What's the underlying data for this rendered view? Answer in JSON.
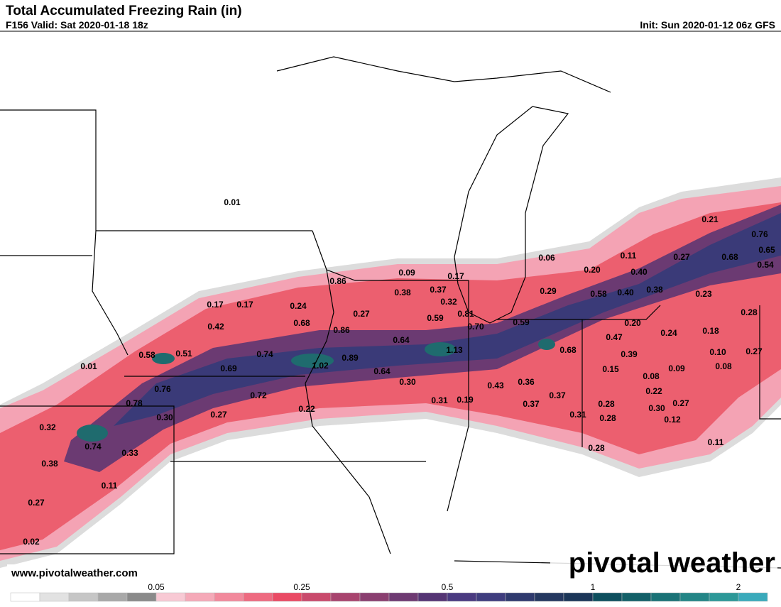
{
  "header": {
    "title": "Total Accumulated Freezing Rain (in)",
    "valid": "F156 Valid: Sat 2020-01-18 18z",
    "init": "Init: Sun 2020-01-12 06z GFS"
  },
  "map_labels": [
    "0.01",
    "0.06",
    "0.21",
    "0.76",
    "0.65",
    "0.54",
    "0.68",
    "0.11",
    "0.27",
    "0.20",
    "0.40",
    "0.09",
    "0.17",
    "0.86",
    "0.38",
    "0.37",
    "0.29",
    "0.58",
    "0.40",
    "0.38",
    "0.23",
    "0.32",
    "0.17",
    "0.17",
    "0.24",
    "0.27",
    "0.81",
    "0.28",
    "0.59",
    "0.42",
    "0.68",
    "0.70",
    "0.59",
    "0.20",
    "0.24",
    "0.18",
    "0.86",
    "0.47",
    "0.64",
    "0.58",
    "0.51",
    "0.74",
    "1.13",
    "0.68",
    "0.39",
    "0.10",
    "0.27",
    "0.89",
    "0.01",
    "0.69",
    "1.02",
    "0.64",
    "0.15",
    "0.08",
    "0.09",
    "0.08",
    "0.30",
    "0.36",
    "0.43",
    "0.76",
    "0.72",
    "0.22",
    "0.37",
    "0.31",
    "0.19",
    "0.78",
    "0.28",
    "0.30",
    "0.27",
    "0.37",
    "0.22",
    "0.27",
    "0.30",
    "0.31",
    "0.28",
    "0.12",
    "0.32",
    "0.74",
    "0.33",
    "0.28",
    "0.11",
    "0.38",
    "0.11",
    "0.27",
    "0.02"
  ],
  "footer": {
    "website": "www.pivotalweather.com",
    "brand": "pivotal weather"
  },
  "colorbar": {
    "labels": [
      "0.05",
      "0.25",
      "0.5",
      "1",
      "2"
    ],
    "colors": [
      "#ffffff",
      "#e2e2e2",
      "#c6c6c6",
      "#a8a8a8",
      "#8a8a8a",
      "#f8c9d4",
      "#f5a9b8",
      "#f2899c",
      "#ee6a80",
      "#ea4a64",
      "#c94a6c",
      "#a8446e",
      "#8a3f70",
      "#6e3a72",
      "#553574",
      "#4a3a80",
      "#3f3d7e",
      "#2f3a6e",
      "#253860",
      "#1b3658",
      "#0e4f5e",
      "#136068",
      "#1a7276",
      "#238586",
      "#2c9898",
      "#3aaabb"
    ]
  }
}
